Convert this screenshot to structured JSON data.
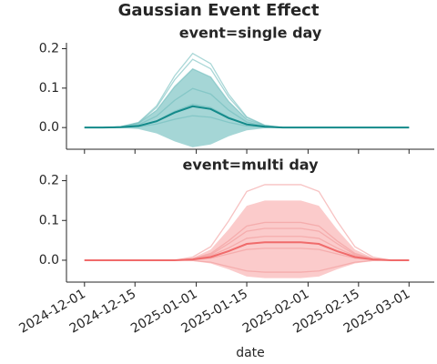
{
  "chart_data": {
    "type": "line",
    "title": "Gaussian Event Effect",
    "xlabel": "date",
    "x": [
      "2024-12-01",
      "2024-12-06",
      "2024-12-11",
      "2024-12-16",
      "2024-12-21",
      "2024-12-26",
      "2024-12-31",
      "2025-01-05",
      "2025-01-10",
      "2025-01-15",
      "2025-01-20",
      "2025-01-25",
      "2025-01-30",
      "2025-02-04",
      "2025-02-09",
      "2025-02-14",
      "2025-02-19",
      "2025-02-24",
      "2025-03-01"
    ],
    "xlim": [
      "2024-11-26",
      "2025-03-08"
    ],
    "xticks": [
      "2024-12-01",
      "2024-12-15",
      "2025-01-01",
      "2025-01-15",
      "2025-02-01",
      "2025-02-15",
      "2025-03-01"
    ],
    "panels": [
      {
        "title": "event=single day",
        "ylim": [
          -0.055,
          0.215
        ],
        "yticks": [
          {
            "value": 0,
            "label": "0.0"
          },
          0.1,
          0.2
        ],
        "band": {
          "color": "#5bb5b5",
          "lower": [
            0,
            0,
            -0.001,
            -0.004,
            -0.015,
            -0.035,
            -0.05,
            -0.043,
            -0.022,
            -0.007,
            -0.002,
            0,
            0,
            0,
            0,
            0,
            0,
            0,
            0
          ],
          "upper": [
            0,
            0,
            0.002,
            0.011,
            0.044,
            0.104,
            0.149,
            0.128,
            0.066,
            0.021,
            0.005,
            0,
            0,
            0,
            0,
            0,
            0,
            0,
            0
          ]
        },
        "sample_color": "#6fbdbd",
        "samples": [
          {
            "values": [
              0,
              0,
              0.002,
              0.013,
              0.055,
              0.131,
              0.188,
              0.162,
              0.084,
              0.027,
              0.006,
              0,
              0,
              0,
              0,
              0,
              0,
              0,
              0
            ]
          },
          {
            "values": [
              0,
              0,
              0.002,
              0.012,
              0.051,
              0.121,
              0.173,
              0.149,
              0.077,
              0.025,
              0.005,
              0,
              0,
              0,
              0,
              0,
              0,
              0,
              0
            ]
          },
          {
            "values": [
              0,
              0,
              0.002,
              0.011,
              0.044,
              0.104,
              0.149,
              0.128,
              0.066,
              0.021,
              0.005,
              0,
              0,
              0,
              0,
              0,
              0,
              0,
              0
            ]
          },
          {
            "values": [
              0,
              0,
              0.001,
              0.007,
              0.029,
              0.069,
              0.099,
              0.085,
              0.044,
              0.014,
              0.003,
              0,
              0,
              0,
              0,
              0,
              0,
              0,
              0
            ]
          },
          {
            "values": [
              0,
              0,
              0.001,
              0.004,
              0.017,
              0.041,
              0.059,
              0.051,
              0.026,
              0.008,
              0.002,
              0,
              0,
              0,
              0,
              0,
              0,
              0,
              0
            ]
          },
          {
            "values": [
              0,
              0,
              0,
              0.002,
              0.009,
              0.021,
              0.03,
              0.026,
              0.013,
              0.004,
              0.001,
              0,
              0,
              0,
              0,
              0,
              0,
              0,
              0
            ]
          }
        ],
        "mean": {
          "color": "#138a8a",
          "values": [
            0,
            0,
            0.001,
            0.004,
            0.016,
            0.038,
            0.054,
            0.047,
            0.024,
            0.008,
            0.002,
            0,
            0,
            0,
            0,
            0,
            0,
            0,
            0
          ]
        }
      },
      {
        "title": "event=multi day",
        "ylim": [
          -0.055,
          0.215
        ],
        "yticks": [
          {
            "value": 0,
            "label": "0.0"
          },
          0.1,
          0.2
        ],
        "band": {
          "color": "#f7a1a1",
          "lower": [
            0,
            0,
            0,
            0,
            0,
            0,
            -0.002,
            -0.008,
            -0.023,
            -0.041,
            -0.045,
            -0.045,
            -0.045,
            -0.041,
            -0.023,
            -0.008,
            -0.002,
            0,
            0
          ],
          "upper": [
            0,
            0,
            0,
            0,
            0,
            0,
            0.006,
            0.027,
            0.078,
            0.137,
            0.15,
            0.15,
            0.15,
            0.137,
            0.078,
            0.027,
            0.006,
            0,
            0
          ]
        },
        "sample_color": "#f29a9a",
        "samples": [
          {
            "values": [
              0,
              0,
              0,
              0,
              0,
              0,
              0.008,
              0.034,
              0.099,
              0.173,
              0.19,
              0.19,
              0.19,
              0.173,
              0.099,
              0.034,
              0.008,
              0,
              0
            ]
          },
          {
            "values": [
              0,
              0,
              0,
              0,
              0,
              0,
              0.004,
              0.017,
              0.049,
              0.086,
              0.095,
              0.095,
              0.095,
              0.086,
              0.049,
              0.017,
              0.004,
              0,
              0
            ]
          },
          {
            "values": [
              0,
              0,
              0,
              0,
              0,
              0,
              0.003,
              0.014,
              0.042,
              0.073,
              0.08,
              0.08,
              0.08,
              0.073,
              0.042,
              0.014,
              0.003,
              0,
              0
            ]
          },
          {
            "values": [
              0,
              0,
              0,
              0,
              0,
              0,
              0.002,
              0.011,
              0.031,
              0.055,
              0.06,
              0.06,
              0.06,
              0.055,
              0.031,
              0.011,
              0.002,
              0,
              0
            ]
          },
          {
            "values": [
              0,
              0,
              0,
              0,
              0,
              0,
              0.001,
              0.005,
              0.016,
              0.027,
              0.03,
              0.03,
              0.03,
              0.027,
              0.016,
              0.005,
              0.001,
              0,
              0
            ]
          },
          {
            "values": [
              0,
              0,
              0,
              0,
              0,
              0,
              -0.001,
              -0.005,
              -0.016,
              -0.027,
              -0.03,
              -0.03,
              -0.03,
              -0.027,
              -0.016,
              -0.005,
              -0.001,
              0,
              0
            ]
          }
        ],
        "mean": {
          "color": "#f06b6b",
          "values": [
            0,
            0,
            0,
            0,
            0,
            0,
            0.002,
            0.008,
            0.023,
            0.041,
            0.045,
            0.045,
            0.045,
            0.041,
            0.023,
            0.008,
            0.002,
            0,
            0
          ]
        }
      }
    ]
  }
}
